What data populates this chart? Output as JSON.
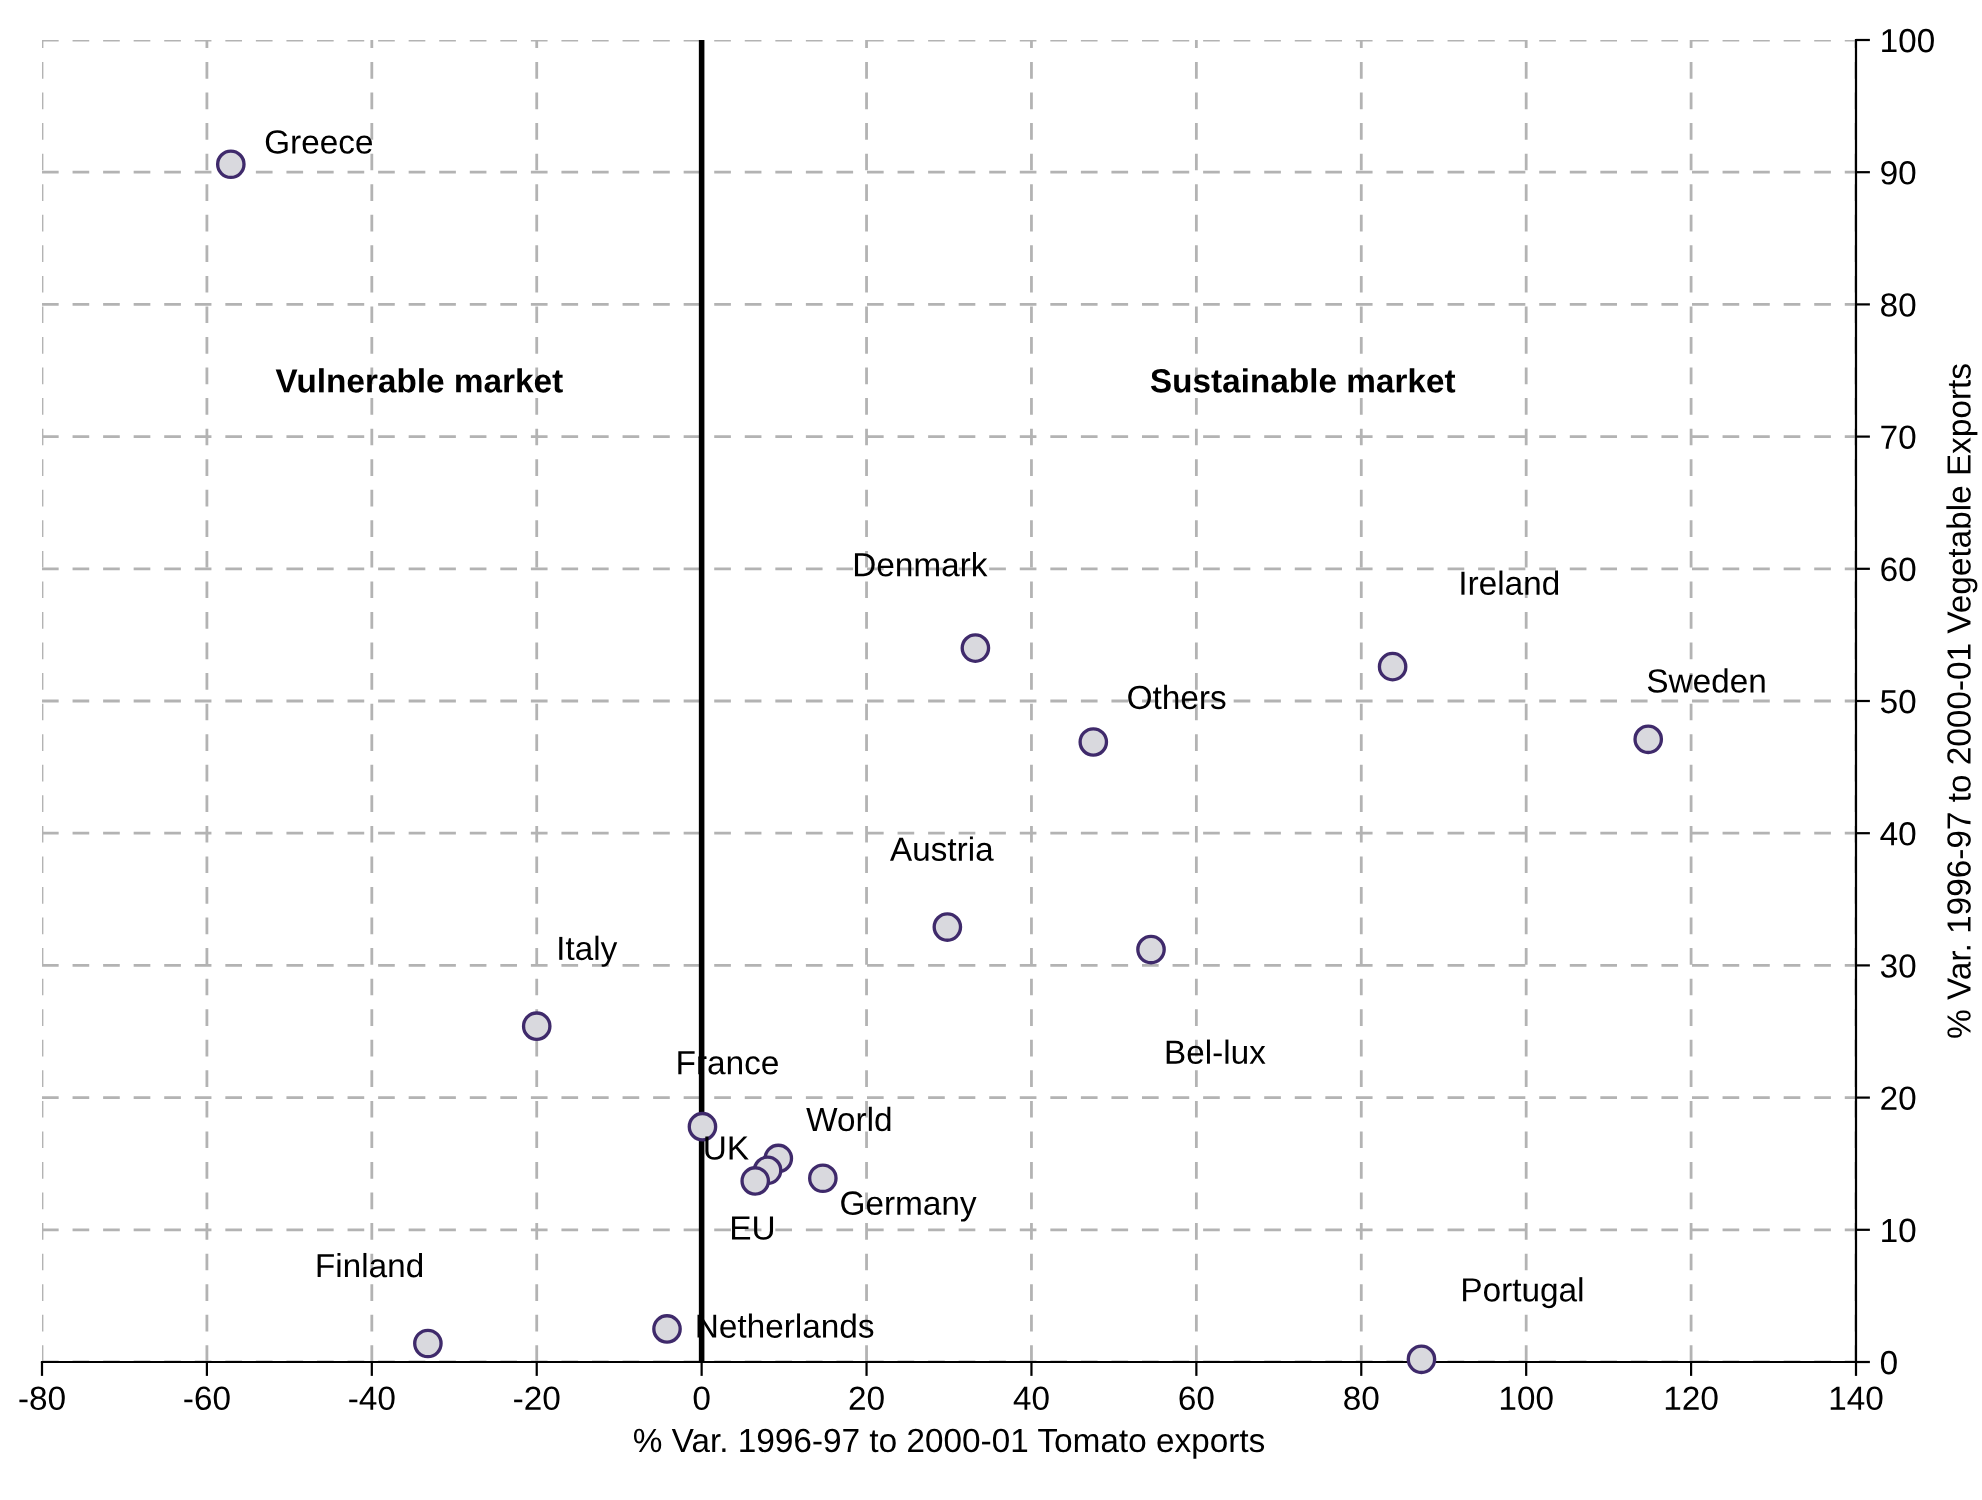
{
  "chart_data": {
    "type": "scatter",
    "xlabel": "% Var. 1996-97 to 2000-01 Tomato exports",
    "ylabel": "% Var. 1996-97 to 2000-01 Vegetable Exports",
    "series": [
      {
        "color": "#d9d9de",
        "x": [
          -57.1,
          33.2,
          83.8,
          47.5,
          114.8,
          29.8,
          54.5,
          -20,
          0.1,
          9.3,
          8.0,
          6.5,
          14.7,
          -33.2,
          -4.2,
          87.3
        ],
        "values": [
          90.6,
          54.0,
          52.6,
          46.9,
          47.1,
          32.9,
          31.2,
          25.4,
          17.8,
          15.4,
          14.5,
          13.7,
          13.9,
          1.4,
          2.5,
          0.2
        ],
        "value_labels": [
          "Greece",
          "Denmark",
          "Ireland",
          "Others",
          "Sweden",
          "Austria",
          "Bel-lux",
          "Italy",
          "France",
          "World",
          "UK",
          "EU",
          "Germany",
          "Finland",
          "Netherlands",
          "Portugal"
        ]
      }
    ],
    "marker": "circle",
    "xlim": [
      -80,
      140
    ],
    "xticks": [
      -80,
      -60,
      -40,
      -20,
      0,
      20,
      40,
      60,
      80,
      100,
      120,
      140
    ],
    "ylim": [
      0,
      100
    ],
    "yticks": [
      0,
      10,
      20,
      30,
      40,
      50,
      60,
      70,
      80,
      90,
      100
    ],
    "grid": true,
    "ref_lines": [
      {
        "axis": "x",
        "value": 0,
        "color": "#000000",
        "line_style": "solid"
      }
    ],
    "annotations": [
      "Vulnerable market",
      "Sustainable market"
    ]
  }
}
